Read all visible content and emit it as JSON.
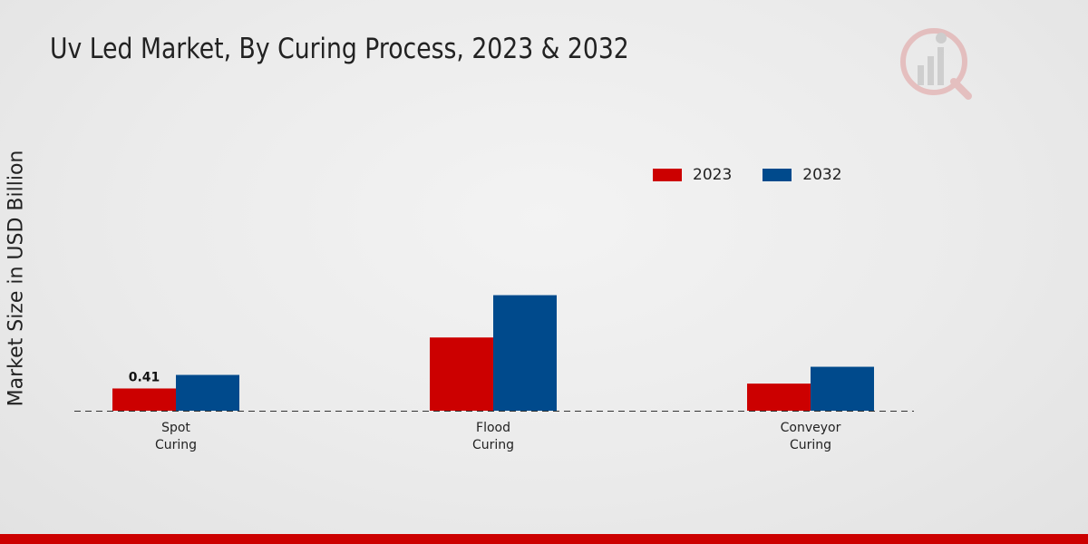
{
  "title": "Uv Led Market, By Curing Process, 2023 & 2032",
  "ylabel": "Market Size in USD Billion",
  "colors": {
    "series_2023": "#cc0000",
    "series_2032": "#004a8c",
    "footer": "#cc0000"
  },
  "logo_icon": "market-research-logo-icon",
  "chart_data": {
    "type": "bar",
    "title": "Uv Led Market, By Curing Process, 2023 & 2032",
    "xlabel": "",
    "ylabel": "Market Size in USD Billion",
    "categories": [
      [
        "Spot",
        "Curing"
      ],
      [
        "Flood",
        "Curing"
      ],
      [
        "Conveyor",
        "Curing"
      ]
    ],
    "series": [
      {
        "name": "2023",
        "values": [
          0.41,
          1.35,
          0.5
        ],
        "color": "#cc0000"
      },
      {
        "name": "2032",
        "values": [
          0.66,
          2.13,
          0.81
        ],
        "color": "#004a8c"
      }
    ],
    "data_labels": [
      {
        "series": 0,
        "category": 0,
        "text": "0.41"
      }
    ],
    "ylim": [
      0,
      6.0
    ],
    "legend": "top-right",
    "grid": false
  }
}
